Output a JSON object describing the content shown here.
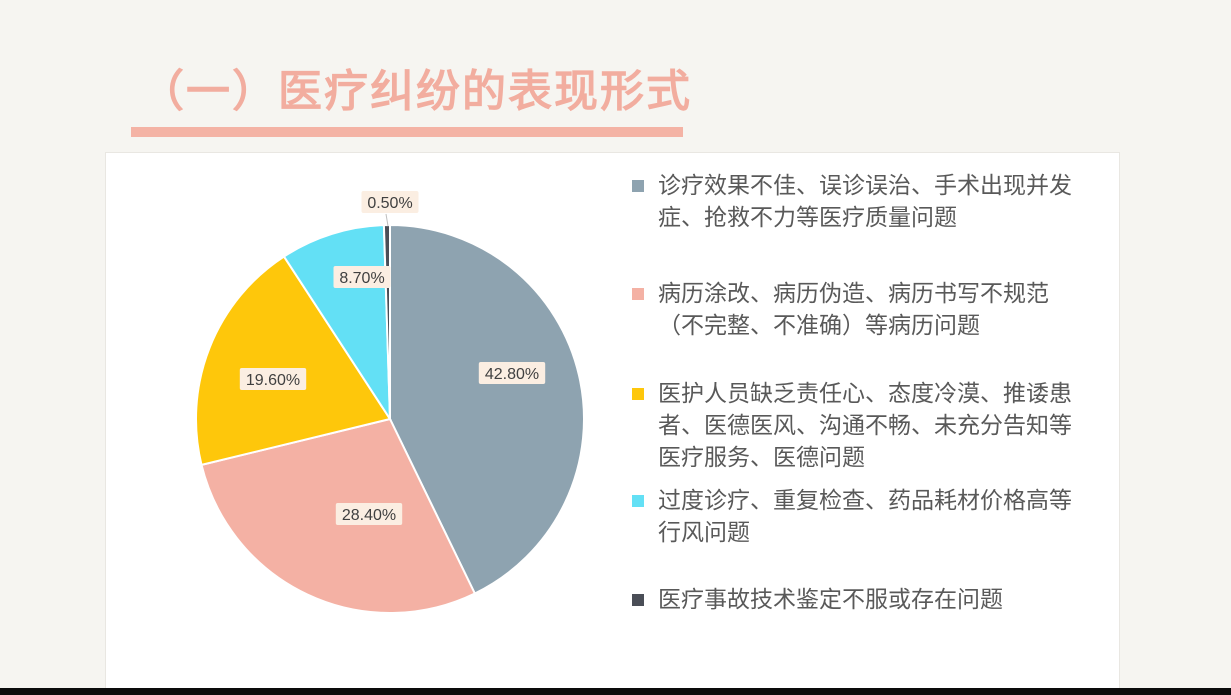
{
  "slide": {
    "title": "（一）医疗纠纷的表现形式"
  },
  "chart_data": {
    "type": "pie",
    "title": "",
    "start_angle_deg": 0,
    "direction": "clockwise",
    "legend_position": "right",
    "slices": [
      {
        "label": "诊疗效果不佳、误诊误治、手术出现并发症、抢救不力等医疗质量问题",
        "value": 42.8,
        "display": "42.80%",
        "color": "#8ea3b0"
      },
      {
        "label": "病历涂改、病历伪造、病历书写不规范（不完整、不准确）等病历问题",
        "value": 28.4,
        "display": "28.40%",
        "color": "#f4b1a4"
      },
      {
        "label": "医护人员缺乏责任心、态度冷漠、推诿患者、医德医风、沟通不畅、未充分告知等医疗服务、医德问题",
        "value": 19.6,
        "display": "19.60%",
        "color": "#fec70b"
      },
      {
        "label": "过度诊疗、重复检查、药品耗材价格高等行风问题",
        "value": 8.7,
        "display": "8.70%",
        "color": "#63e0f5"
      },
      {
        "label": "医疗事故技术鉴定不服或存在问题",
        "value": 0.5,
        "display": "0.50%",
        "color": "#4a4e57"
      }
    ]
  },
  "legend_lines": [
    [
      "诊疗效果不佳、误诊误治、手术出现并发",
      "症、抢救不力等医疗质量问题"
    ],
    [
      "病历涂改、病历伪造、病历书写不规范",
      "（不完整、不准确）等病历问题"
    ],
    [
      "医护人员缺乏责任心、态度冷漠、推诿患",
      "者、医德医风、沟通不畅、未充分告知等",
      "医疗服务、医德问题"
    ],
    [
      "过度诊疗、重复检查、药品耗材价格高等",
      "行风问题"
    ],
    [
      "医疗事故技术鉴定不服或存在问题"
    ]
  ]
}
